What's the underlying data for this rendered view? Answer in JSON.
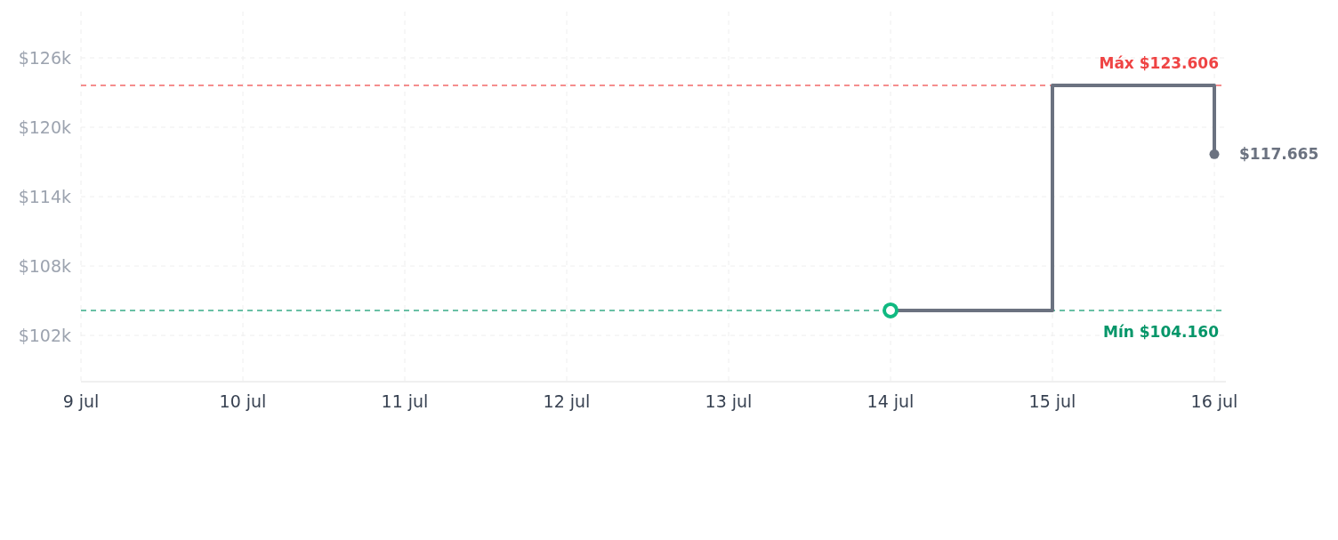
{
  "chart_data": {
    "type": "step",
    "x": [
      "--07-14",
      "--07-15",
      "--07-16"
    ],
    "series": [
      {
        "color": "#6b7280",
        "values": [
          104160,
          123606,
          117665
        ],
        "marker": "none"
      },
      {
        "type": "scatter",
        "color": "#10b981",
        "x": [
          "--07-14"
        ],
        "values": [
          104160
        ],
        "marker": "circle"
      },
      {
        "type": "scatter",
        "color": "#6b7280",
        "x": [
          "--07-16"
        ],
        "values": [
          117665
        ],
        "marker": "circle"
      }
    ],
    "xlim": [
      "--07-09",
      "--07-16"
    ],
    "xticks": [
      {
        "value": "--07-09",
        "label": "9 jul"
      },
      {
        "value": "--07-10",
        "label": "10 jul"
      },
      {
        "value": "--07-11",
        "label": "11 jul"
      },
      {
        "value": "--07-12",
        "label": "12 jul"
      },
      {
        "value": "--07-13",
        "label": "13 jul"
      },
      {
        "value": "--07-14",
        "label": "14 jul"
      },
      {
        "value": "--07-15",
        "label": "15 jul"
      },
      {
        "value": "--07-16",
        "label": "16 jul"
      }
    ],
    "ylim": [
      98000,
      130000
    ],
    "yticks": [
      {
        "value": 102000,
        "label": "$102k"
      },
      {
        "value": 108000,
        "label": "$108k"
      },
      {
        "value": 114000,
        "label": "$114k"
      },
      {
        "value": 120000,
        "label": "$120k"
      },
      {
        "value": 126000,
        "label": "$126k"
      }
    ],
    "ref_lines": [
      {
        "axis": "y",
        "value": 123606,
        "label": "Máx $123.606",
        "color": "#ef4444",
        "line_style": "dashed"
      },
      {
        "axis": "y",
        "value": 104160,
        "label": "Mín $104.160",
        "color": "#059669",
        "line_style": "dashed"
      }
    ],
    "annotations": [
      {
        "text": "$117.665",
        "x": "--07-16",
        "y": 117665
      }
    ],
    "grid": true
  }
}
